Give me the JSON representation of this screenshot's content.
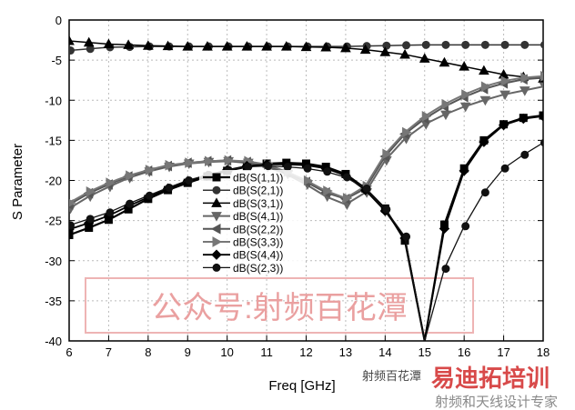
{
  "chart_data": {
    "type": "line",
    "xlabel": "Freq [GHz]",
    "ylabel": "S Parameter",
    "xlim": [
      6,
      18
    ],
    "ylim": [
      -40,
      0
    ],
    "xticks": [
      6,
      7,
      8,
      9,
      10,
      11,
      12,
      13,
      14,
      15,
      16,
      17,
      18
    ],
    "yticks": [
      0,
      -5,
      -10,
      -15,
      -20,
      -25,
      -30,
      -35,
      -40
    ],
    "grid": true,
    "legend_position": "center-left",
    "x": [
      6,
      6.5,
      7,
      7.5,
      8,
      8.5,
      9,
      9.5,
      10,
      10.5,
      11,
      11.5,
      12,
      12.5,
      13,
      13.5,
      14,
      14.5,
      15,
      15.5,
      16,
      16.5,
      17,
      17.5,
      18
    ],
    "series": [
      {
        "name": "dB(S(1,1))",
        "marker": "square",
        "color": "#000000",
        "width": 2.2,
        "values": [
          -26.8,
          -25.9,
          -24.9,
          -23.6,
          -22.3,
          -21.2,
          -20.3,
          -19.5,
          -18.8,
          -18.3,
          -17.9,
          -17.8,
          -17.9,
          -18.3,
          -19.2,
          -21,
          -23.5,
          -27.5,
          -40,
          -25.5,
          -18.5,
          -15,
          -13,
          -12.2,
          -11.9
        ]
      },
      {
        "name": "dB(S(2,1))",
        "marker": "circle",
        "color": "#333333",
        "width": 1.5,
        "values": [
          -3.8,
          -3.6,
          -3.4,
          -3.35,
          -3.3,
          -3.3,
          -3.3,
          -3.3,
          -3.3,
          -3.3,
          -3.3,
          -3.3,
          -3.3,
          -3.3,
          -3.3,
          -3.25,
          -3.2,
          -3.15,
          -3.1,
          -3.1,
          -3.1,
          -3.1,
          -3.1,
          -3.1,
          -3.1
        ]
      },
      {
        "name": "dB(S(3,1))",
        "marker": "triangle-up",
        "color": "#000000",
        "width": 1.5,
        "values": [
          -2.6,
          -2.8,
          -3.0,
          -3.1,
          -3.2,
          -3.25,
          -3.3,
          -3.3,
          -3.3,
          -3.3,
          -3.3,
          -3.3,
          -3.35,
          -3.4,
          -3.5,
          -3.7,
          -4.0,
          -4.3,
          -4.8,
          -5.3,
          -5.8,
          -6.3,
          -6.8,
          -7.1,
          -7.3
        ]
      },
      {
        "name": "dB(S(4,1))",
        "marker": "triangle-down",
        "color": "#666666",
        "width": 2,
        "values": [
          -23.5,
          -22,
          -20.8,
          -19.7,
          -18.9,
          -18.3,
          -17.9,
          -17.7,
          -17.6,
          -17.8,
          -18.3,
          -19.2,
          -20.5,
          -22,
          -23,
          -21.5,
          -17.5,
          -14.8,
          -13,
          -11.8,
          -10.8,
          -10,
          -9.3,
          -8.8,
          -8.3
        ]
      },
      {
        "name": "dB(S(2,2))",
        "marker": "triangle-left",
        "color": "#555555",
        "width": 2,
        "values": [
          -23,
          -21.6,
          -20.5,
          -19.5,
          -18.8,
          -18.2,
          -17.8,
          -17.6,
          -17.5,
          -17.7,
          -18.1,
          -19,
          -20.2,
          -21.5,
          -22.3,
          -21,
          -17,
          -14.2,
          -12.3,
          -10.8,
          -9.6,
          -8.6,
          -7.9,
          -7.4,
          -7.2
        ]
      },
      {
        "name": "dB(S(3,3))",
        "marker": "triangle-right",
        "color": "#777777",
        "width": 2,
        "values": [
          -22.8,
          -21.4,
          -20.3,
          -19.4,
          -18.7,
          -18.1,
          -17.8,
          -17.6,
          -17.5,
          -17.6,
          -18,
          -18.9,
          -20,
          -21.3,
          -22.2,
          -20.7,
          -16.7,
          -14,
          -12,
          -10.5,
          -9.3,
          -8.3,
          -7.6,
          -7.2,
          -7.0
        ]
      },
      {
        "name": "dB(S(4,4))",
        "marker": "diamond",
        "color": "#000000",
        "width": 1.8,
        "values": [
          -26.1,
          -25.3,
          -24.4,
          -23.2,
          -22.1,
          -21,
          -20.1,
          -19.4,
          -18.7,
          -18.2,
          -18,
          -18,
          -18.1,
          -18.5,
          -19.4,
          -21.2,
          -23.8,
          -27.2,
          -40,
          -26,
          -18.8,
          -15.2,
          -13.1,
          -12.3,
          -12
        ]
      },
      {
        "name": "dB(S(2,3))",
        "marker": "hexagon",
        "color": "#111111",
        "width": 1.3,
        "values": [
          -25.6,
          -24.8,
          -24,
          -22.9,
          -21.9,
          -20.9,
          -20,
          -19.3,
          -18.7,
          -18.3,
          -18.2,
          -18.3,
          -18.5,
          -18.9,
          -19.6,
          -21,
          -23.6,
          -27,
          -40,
          -31,
          -25.7,
          -21.5,
          -18.5,
          -16.8,
          -15.3
        ]
      }
    ]
  },
  "watermarks": {
    "center_stamp": "公众号:射频百花潭",
    "bottom_logo": "易迪拓培训",
    "bottom_small": "射频百花潭",
    "bottom_sub": "射频和天线设计专家"
  },
  "colors": {
    "watermark_red": "#e58a8a",
    "logo_blue": "#6a8fc0"
  }
}
